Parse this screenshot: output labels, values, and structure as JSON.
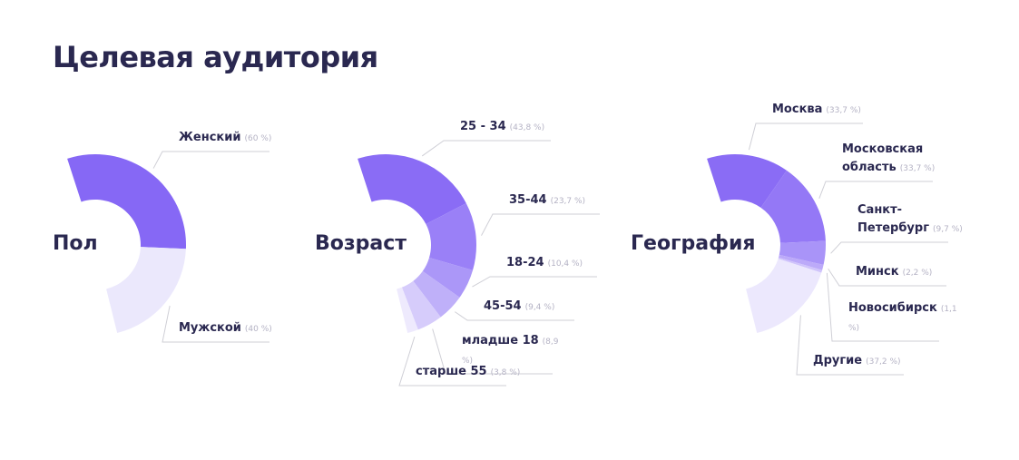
{
  "title": "Целевая аудитория",
  "chart_data": [
    {
      "type": "pie",
      "title": "Пол",
      "categories": [
        "Женский",
        "Мужской"
      ],
      "values": [
        60,
        40
      ],
      "value_labels": [
        "(60 %)",
        "(40 %)"
      ],
      "colors": [
        "#8668f5",
        "#ebe8fc"
      ]
    },
    {
      "type": "pie",
      "title": "Возраст",
      "categories": [
        "25 - 34",
        "35-44",
        "18-24",
        "45-54",
        "младше 18",
        "старше 55"
      ],
      "values": [
        43.8,
        23.7,
        10.4,
        9.4,
        8.9,
        3.8
      ],
      "value_labels": [
        "(43,8 %)",
        "(23,7 %)",
        "(10,4 %)",
        "(9,4 %)",
        "(8,9 %)",
        "(3,8 %)"
      ],
      "colors": [
        "#8a6cf5",
        "#9a80f7",
        "#ab97f8",
        "#bfb0f9",
        "#d6ccfb",
        "#eeeafd"
      ]
    },
    {
      "type": "pie",
      "title": "География",
      "categories": [
        "Москва",
        "Московская область",
        "Санкт-Петербург",
        "Минск",
        "Новосибирск",
        "Другие"
      ],
      "values": [
        33.7,
        33.7,
        9.7,
        2.2,
        1.1,
        37.2
      ],
      "value_labels": [
        "(33,7 %)",
        "(33,7 %)",
        "(9,7 %)",
        "(2,2 %)",
        "(1,1 %)",
        "(37,2 %)"
      ],
      "colors": [
        "#8a6cf5",
        "#9478f6",
        "#a994f8",
        "#bcaaf9",
        "#d0c4fb",
        "#ece8fd"
      ]
    }
  ]
}
